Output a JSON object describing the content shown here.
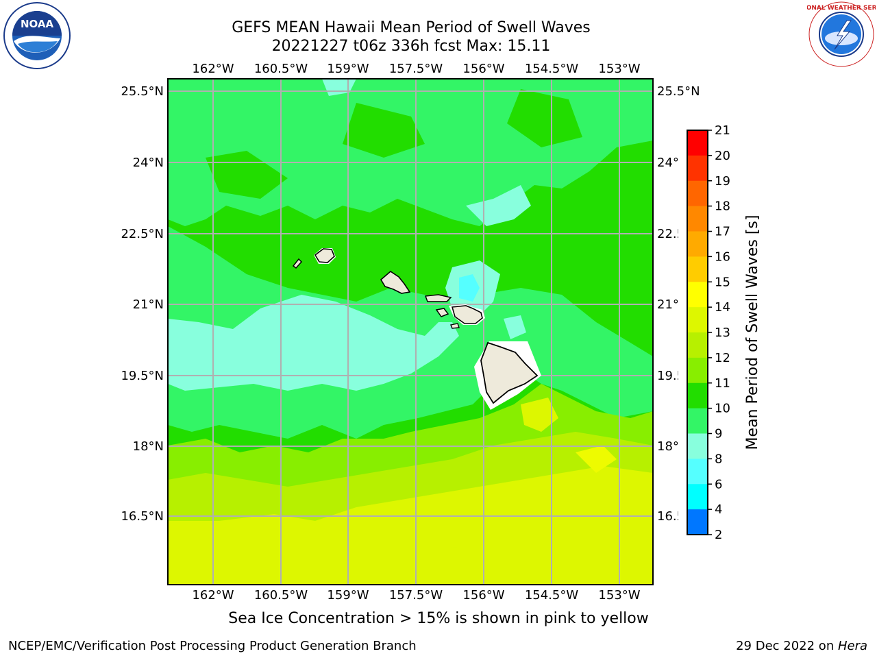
{
  "title": {
    "line1": "GEFS MEAN Hawaii Mean Period of Swell Waves",
    "line2": "20221227 t06z 336h fcst   Max: 15.11"
  },
  "axes": {
    "lon_labels": [
      "162°W",
      "160.5°W",
      "159°W",
      "157.5°W",
      "156°W",
      "154.5°W",
      "153°W"
    ],
    "lat_labels": [
      "25.5°N",
      "24°N",
      "22.5°N",
      "21°N",
      "19.5°N",
      "18°N",
      "16.5°N"
    ]
  },
  "colorbar": {
    "label": "Mean Period of Swell Waves [s]",
    "ticks": [
      "21",
      "20",
      "19",
      "18",
      "17",
      "16",
      "15",
      "14",
      "13",
      "12",
      "11",
      "10",
      "9",
      "8",
      "6",
      "4",
      "2"
    ],
    "colors": [
      "#ff0000",
      "#ff3300",
      "#ff6600",
      "#ff8800",
      "#ffaa00",
      "#ffcc00",
      "#ffff00",
      "#ddf700",
      "#b7f000",
      "#88ee00",
      "#22dd00",
      "#33f566",
      "#88ffdd",
      "#55ffff",
      "#00ffff",
      "#0077ff",
      "#0033ff",
      "#0000ff"
    ]
  },
  "footer": {
    "note": "Sea Ice Concentration > 15% is shown in pink to yellow",
    "left": "NCEP/EMC/Verification Post Processing Product Generation Branch",
    "right_date": "29 Dec 2022 on ",
    "right_host": "Hera"
  },
  "logos": {
    "noaa_text": "NOAA",
    "nws_text": "NATIONAL WEATHER SERVICE"
  }
}
